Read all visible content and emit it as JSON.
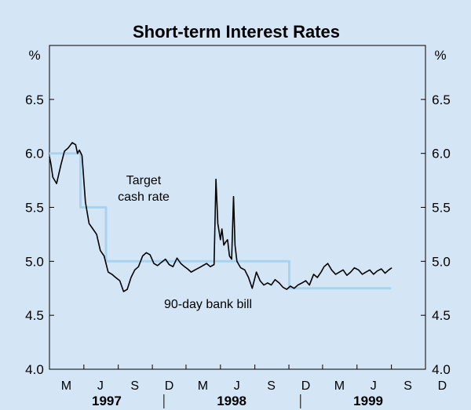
{
  "chart_data": {
    "type": "line",
    "title": "Short-term Interest Rates",
    "unit_left": "%",
    "unit_right": "%",
    "ylim": [
      4.0,
      7.0
    ],
    "yticks": [
      "4.0",
      "4.5",
      "5.0",
      "5.5",
      "6.0",
      "6.5"
    ],
    "x_range": [
      "1997-03",
      "1999-12"
    ],
    "month_ticks": [
      "M",
      "J",
      "S",
      "D",
      "M",
      "J",
      "S",
      "D",
      "M",
      "J",
      "S",
      "D"
    ],
    "years": [
      "1997",
      "1998",
      "1999"
    ],
    "grid": false,
    "series": [
      {
        "name": "Target cash rate",
        "color": "#a7d3f0",
        "step": true,
        "x": [
          "1997-03",
          "1997-05-23",
          "1997-07-30",
          "1997-12-02",
          "1998-12-02",
          "1999-08-31"
        ],
        "values": [
          6.0,
          5.5,
          5.0,
          5.0,
          4.75,
          4.75
        ]
      },
      {
        "name": "90-day bank bill",
        "color": "#000000",
        "x": [
          "1997-03",
          "1997-03-05",
          "1997-03-10",
          "1997-03-20",
          "1997-04-01",
          "1997-04-10",
          "1997-04-20",
          "1997-05-01",
          "1997-05-10",
          "1997-05-15",
          "1997-05-20",
          "1997-05-27",
          "1997-06-05",
          "1997-06-15",
          "1997-06-25",
          "1997-07-05",
          "1997-07-15",
          "1997-07-25",
          "1997-08-05",
          "1997-08-15",
          "1997-08-25",
          "1997-09-05",
          "1997-09-15",
          "1997-09-25",
          "1997-10-05",
          "1997-10-15",
          "1997-10-25",
          "1997-11-05",
          "1997-11-15",
          "1997-11-25",
          "1997-12-05",
          "1997-12-15",
          "1997-12-25",
          "1998-01-05",
          "1998-01-15",
          "1998-01-25",
          "1998-02-05",
          "1998-02-15",
          "1998-02-25",
          "1998-03-05",
          "1998-03-15",
          "1998-03-25",
          "1998-04-05",
          "1998-04-15",
          "1998-04-25",
          "1998-05-05",
          "1998-05-15",
          "1998-05-20",
          "1998-05-25",
          "1998-06-01",
          "1998-06-05",
          "1998-06-10",
          "1998-06-15",
          "1998-06-20",
          "1998-06-25",
          "1998-07-01",
          "1998-07-06",
          "1998-07-10",
          "1998-07-15",
          "1998-07-20",
          "1998-07-25",
          "1998-08-05",
          "1998-08-15",
          "1998-08-25",
          "1998-09-05",
          "1998-09-15",
          "1998-09-25",
          "1998-10-05",
          "1998-10-15",
          "1998-10-25",
          "1998-11-05",
          "1998-11-15",
          "1998-11-25",
          "1998-12-05",
          "1998-12-15",
          "1998-12-25",
          "1999-01-05",
          "1999-01-15",
          "1999-01-25",
          "1999-02-05",
          "1999-02-15",
          "1999-02-25",
          "1999-03-05",
          "1999-03-15",
          "1999-03-25",
          "1999-04-05",
          "1999-04-15",
          "1999-04-25",
          "1999-05-05",
          "1999-05-15",
          "1999-05-25",
          "1999-06-05",
          "1999-06-15",
          "1999-06-25",
          "1999-07-05",
          "1999-07-15",
          "1999-07-25",
          "1999-08-05",
          "1999-08-15",
          "1999-08-25",
          "1999-09-02"
        ],
        "values": [
          5.97,
          5.9,
          5.78,
          5.72,
          5.9,
          6.02,
          6.05,
          6.1,
          6.08,
          6.0,
          6.03,
          5.98,
          5.55,
          5.35,
          5.3,
          5.25,
          5.1,
          5.05,
          4.9,
          4.88,
          4.85,
          4.82,
          4.72,
          4.74,
          4.85,
          4.92,
          4.95,
          5.05,
          5.08,
          5.06,
          4.98,
          4.96,
          4.99,
          5.02,
          4.97,
          4.95,
          5.03,
          4.98,
          4.95,
          4.93,
          4.9,
          4.92,
          4.94,
          4.96,
          4.98,
          4.95,
          4.97,
          5.76,
          5.35,
          5.2,
          5.3,
          5.15,
          5.18,
          5.2,
          5.05,
          5.02,
          5.6,
          5.15,
          5.0,
          4.97,
          4.94,
          4.92,
          4.85,
          4.75,
          4.9,
          4.82,
          4.78,
          4.8,
          4.78,
          4.83,
          4.8,
          4.76,
          4.74,
          4.77,
          4.75,
          4.78,
          4.8,
          4.82,
          4.78,
          4.88,
          4.85,
          4.9,
          4.95,
          4.98,
          4.92,
          4.88,
          4.9,
          4.92,
          4.87,
          4.9,
          4.94,
          4.92,
          4.88,
          4.9,
          4.92,
          4.88,
          4.91,
          4.93,
          4.89,
          4.92,
          4.94
        ]
      }
    ],
    "annotations": [
      {
        "line1": "Target",
        "line2": "cash rate",
        "series": "Target cash rate"
      },
      {
        "line1": "90-day bank bill",
        "series": "90-day bank bill"
      }
    ]
  }
}
